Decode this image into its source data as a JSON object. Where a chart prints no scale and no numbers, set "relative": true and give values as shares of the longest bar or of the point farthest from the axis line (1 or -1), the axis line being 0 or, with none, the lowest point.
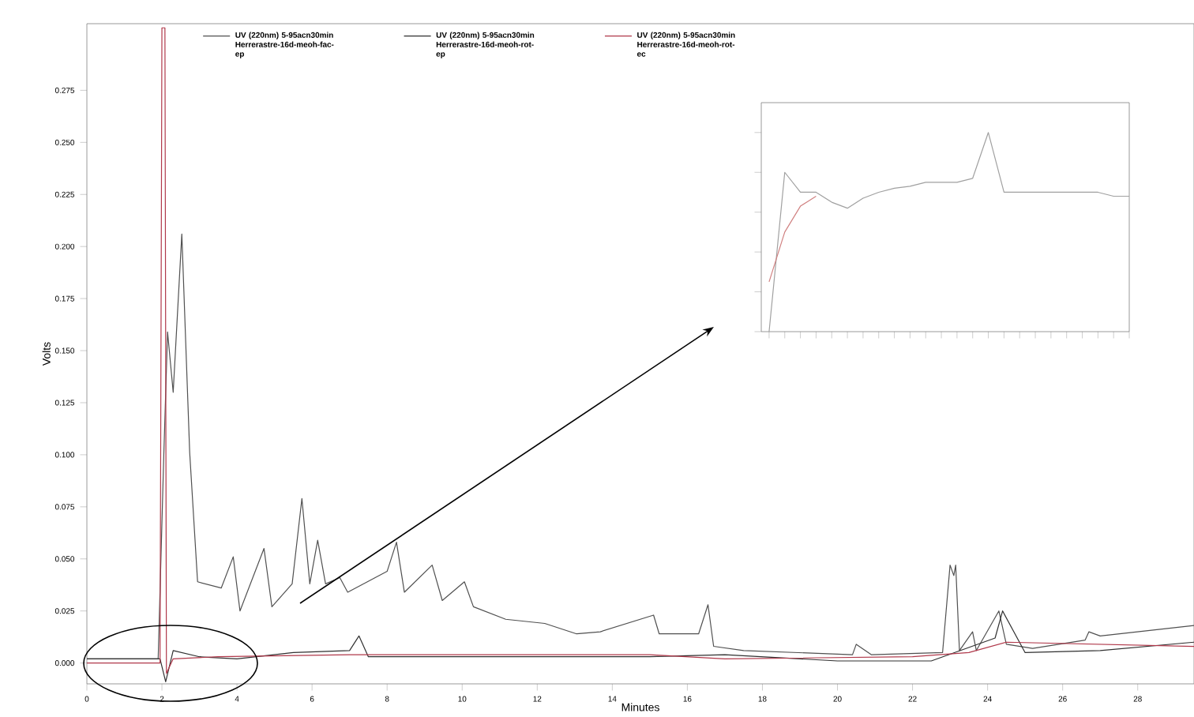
{
  "chart_data": [
    {
      "type": "line",
      "xlabel": "Minutes",
      "ylabel": "Volts",
      "xlim": [
        0,
        29.5
      ],
      "ylim": [
        -0.01,
        0.307
      ],
      "xticks": [
        0,
        2,
        4,
        6,
        8,
        10,
        12,
        14,
        16,
        18,
        20,
        22,
        24,
        26,
        28
      ],
      "yticks": [
        {
          "value": 0,
          "label": "0.000"
        },
        {
          "value": 0.025,
          "label": "0.025"
        },
        {
          "value": 0.05,
          "label": "0.050"
        },
        {
          "value": 0.075,
          "label": "0.075"
        },
        {
          "value": 0.1,
          "label": "0.100"
        },
        {
          "value": 0.125,
          "label": "0.125"
        },
        {
          "value": 0.15,
          "label": "0.150"
        },
        {
          "value": 0.175,
          "label": "0.175"
        },
        {
          "value": 0.2,
          "label": "0.200"
        },
        {
          "value": 0.225,
          "label": "0.225"
        },
        {
          "value": 0.25,
          "label": "0.250"
        },
        {
          "value": 0.275,
          "label": "0.275"
        }
      ],
      "legend": "top",
      "series": [
        {
          "name": "UV (220nm) 5-95acn30min Herrerastre-16d-meoh-fac-ep",
          "color": "#505050",
          "x": [
            0,
            1.9,
            2.05,
            2.15,
            2.3,
            2.53,
            2.74,
            2.95,
            3.58,
            3.9,
            4.08,
            4.72,
            4.93,
            5.47,
            5.73,
            5.94,
            6.15,
            6.36,
            6.74,
            6.95,
            8,
            8.25,
            8.46,
            9.2,
            9.47,
            10.06,
            10.3,
            11.16,
            12.2,
            13.05,
            13.68,
            15.1,
            15.25,
            16.3,
            16.55,
            16.7,
            17.5,
            20.4,
            20.5,
            20.9,
            22.8,
            23,
            23.1,
            23.15,
            23.25,
            23.6,
            23.7,
            24.3,
            24.5,
            25.2,
            26.6,
            26.7,
            27,
            29.5
          ],
          "values": [
            0.002,
            0.002,
            0.1,
            0.159,
            0.13,
            0.206,
            0.101,
            0.039,
            0.036,
            0.051,
            0.025,
            0.055,
            0.027,
            0.038,
            0.079,
            0.038,
            0.059,
            0.038,
            0.041,
            0.034,
            0.044,
            0.058,
            0.034,
            0.047,
            0.03,
            0.039,
            0.027,
            0.021,
            0.019,
            0.014,
            0.015,
            0.023,
            0.014,
            0.014,
            0.028,
            0.008,
            0.006,
            0.004,
            0.009,
            0.004,
            0.005,
            0.047,
            0.042,
            0.047,
            0.006,
            0.015,
            0.006,
            0.025,
            0.009,
            0.007,
            0.011,
            0.015,
            0.013,
            0.018
          ]
        },
        {
          "name": "UV (220nm) 5-95acn30min Herrerastre-16d-meoh-rot-ep",
          "color": "#303030",
          "x": [
            0,
            1.95,
            2.1,
            2.3,
            3,
            4,
            5.5,
            7,
            7.25,
            7.5,
            15,
            17,
            20,
            22.5,
            24.2,
            24.4,
            25,
            27,
            29.5
          ],
          "values": [
            0.002,
            0.002,
            -0.009,
            0.006,
            0.003,
            0.002,
            0.005,
            0.006,
            0.013,
            0.003,
            0.003,
            0.004,
            0.001,
            0.001,
            0.012,
            0.025,
            0.005,
            0.006,
            0.01
          ]
        },
        {
          "name": "UV (220nm) 5-95acn30min Herrerastre-16d-meoh-rot-ec",
          "color": "#b0384a",
          "x": [
            0,
            1.95,
            2.0,
            2.08,
            2.12,
            2.3,
            3.5,
            7,
            15,
            17,
            22,
            23.5,
            24.5,
            29.5
          ],
          "values": [
            0.0,
            0.0,
            0.305,
            0.305,
            -0.005,
            0.002,
            0.003,
            0.004,
            0.004,
            0.002,
            0.003,
            0.005,
            0.01,
            0.008
          ]
        }
      ]
    },
    {
      "type": "line",
      "relative": true,
      "categories": [
        null,
        null,
        null,
        null,
        null,
        null,
        null,
        null,
        null,
        null,
        null,
        null,
        null,
        null,
        null,
        null,
        null,
        null,
        null,
        null,
        null,
        null,
        null,
        null
      ],
      "series": [
        {
          "color": "#a0a0a0",
          "values": [
            0,
            0.8,
            0.7,
            0.7,
            0.65,
            0.62,
            0.67,
            0.7,
            0.72,
            0.73,
            0.75,
            0.75,
            0.75,
            0.77,
            1,
            0.7,
            0.7,
            0.7,
            0.7,
            0.7,
            0.7,
            0.7,
            0.68,
            0.68
          ]
        },
        {
          "color": "#d08080",
          "values": [
            0.25,
            0.5,
            0.63,
            0.68,
            null,
            null,
            null,
            null,
            null,
            null,
            null,
            null,
            null,
            null,
            null,
            null,
            null,
            null,
            null,
            null,
            null,
            null,
            null,
            null
          ]
        }
      ]
    }
  ]
}
